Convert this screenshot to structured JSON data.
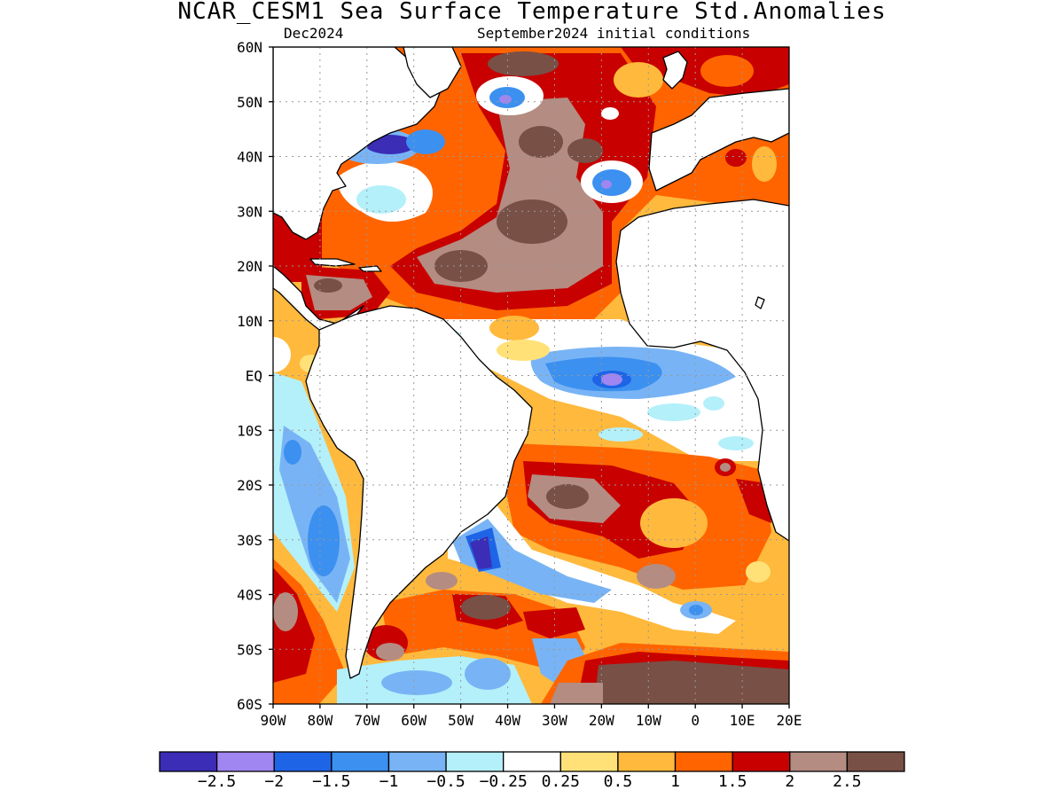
{
  "title": "NCAR_CESM1 Sea Surface Temperature Std.Anomalies",
  "subtitle_left": "Dec2024",
  "subtitle_right": "September2024 initial conditions",
  "map": {
    "lon_range": [
      -90,
      20
    ],
    "lat_range": [
      -60,
      60
    ],
    "lat_labels": [
      "60N",
      "50N",
      "40N",
      "30N",
      "20N",
      "10N",
      "EQ",
      "10S",
      "20S",
      "30S",
      "40S",
      "50S",
      "60S"
    ],
    "lon_labels": [
      "90W",
      "80W",
      "70W",
      "60W",
      "50W",
      "40W",
      "30W",
      "20W",
      "10W",
      "0",
      "10E",
      "20E"
    ],
    "land_color": "#ffffff",
    "grid": "dotted"
  },
  "colorbar": {
    "colors": [
      "#3b2db5",
      "#9f86f0",
      "#1e64e6",
      "#3c90f0",
      "#78b4f5",
      "#b4f0fa",
      "#ffffff",
      "#ffe178",
      "#ffb93c",
      "#ff6400",
      "#c80000",
      "#b48c82",
      "#785046"
    ],
    "labels": [
      "−2.5",
      "−2",
      "−1.5",
      "−1",
      "−0.5",
      "−0.25",
      "0.25",
      "0.5",
      "1",
      "1.5",
      "2",
      "2.5"
    ]
  }
}
